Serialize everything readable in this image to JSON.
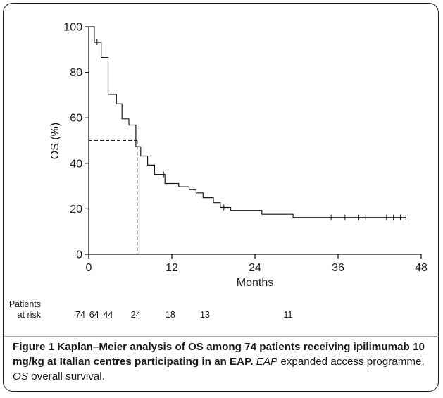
{
  "chart_data": {
    "type": "line",
    "title": "",
    "xlabel": "Months",
    "ylabel": "OS (%)",
    "xlim": [
      0,
      48
    ],
    "ylim": [
      0,
      100
    ],
    "x_ticks": [
      0,
      12,
      24,
      36,
      48
    ],
    "y_ticks": [
      0,
      20,
      40,
      60,
      80,
      100
    ],
    "grid": false,
    "series": [
      {
        "name": "",
        "step": true,
        "points": [
          [
            0,
            100
          ],
          [
            0.8,
            100
          ],
          [
            0.8,
            93.2
          ],
          [
            1.8,
            93.2
          ],
          [
            1.8,
            86.5
          ],
          [
            2.8,
            86.5
          ],
          [
            2.8,
            70.3
          ],
          [
            4.0,
            70.3
          ],
          [
            4.0,
            66.2
          ],
          [
            4.8,
            66.2
          ],
          [
            4.8,
            59.5
          ],
          [
            5.8,
            59.5
          ],
          [
            5.8,
            56.8
          ],
          [
            6.8,
            56.8
          ],
          [
            6.8,
            47.3
          ],
          [
            7.5,
            47.3
          ],
          [
            7.5,
            43.2
          ],
          [
            8.5,
            43.2
          ],
          [
            8.5,
            39.2
          ],
          [
            9.5,
            39.2
          ],
          [
            9.5,
            35.1
          ],
          [
            11.0,
            35.1
          ],
          [
            11.0,
            31.1
          ],
          [
            13.0,
            31.1
          ],
          [
            13.0,
            29.7
          ],
          [
            14.5,
            29.7
          ],
          [
            14.5,
            28.4
          ],
          [
            15.5,
            28.4
          ],
          [
            15.5,
            27.0
          ],
          [
            16.5,
            27.0
          ],
          [
            16.5,
            24.9
          ],
          [
            18.0,
            24.9
          ],
          [
            18.0,
            22.7
          ],
          [
            19.0,
            22.7
          ],
          [
            19.0,
            20.6
          ],
          [
            20.5,
            20.6
          ],
          [
            20.5,
            19.3
          ],
          [
            25.0,
            19.3
          ],
          [
            25.0,
            17.6
          ],
          [
            29.5,
            17.6
          ],
          [
            29.5,
            16.2
          ],
          [
            45.8,
            16.2
          ]
        ]
      }
    ],
    "censor_marks": [
      [
        1.2,
        93.2
      ],
      [
        10.8,
        35.1
      ],
      [
        19.5,
        20.6
      ],
      [
        35.0,
        16.2
      ],
      [
        37.0,
        16.2
      ],
      [
        39.0,
        16.2
      ],
      [
        40.0,
        16.2
      ],
      [
        43.0,
        16.2
      ],
      [
        44.0,
        16.2
      ],
      [
        45.0,
        16.2
      ],
      [
        45.8,
        16.2
      ]
    ],
    "median_line": {
      "x": 7,
      "y": 50,
      "style": "dashed"
    },
    "at_risk": {
      "label_line1": "Patients",
      "label_line2": "at risk",
      "x": [
        0,
        2,
        4,
        8,
        13,
        18,
        30
      ],
      "values": [
        "74",
        "64",
        "44",
        "24",
        "18",
        "13",
        "11"
      ]
    }
  },
  "caption": {
    "fig_label": "Figure 1",
    "title": " Kaplan–Meier analysis of OS among 74 patients receiving ipilimumab 10 mg/kg at Italian centres participating in an EAP.",
    "abbr1": "EAP",
    "abbr1_def": " expanded access programme, ",
    "abbr2": "OS",
    "abbr2_def": " overall survival."
  },
  "colors": {
    "line": "#1a1a1a",
    "text": "#1a1a1a",
    "frame": "#1a1a1a"
  }
}
